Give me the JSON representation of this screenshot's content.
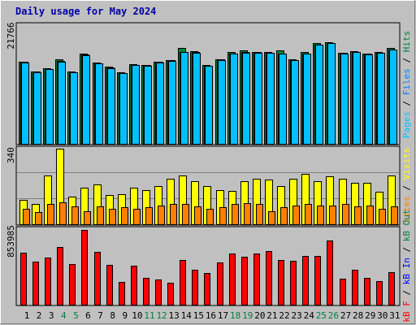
{
  "title": "Daily usage for May 2024",
  "colors": {
    "hits": "#008040",
    "files": "#0080ff",
    "pages": "#00c0ff",
    "visits": "#ffff00",
    "sites": "#ff8000",
    "kbin": "#ff0000",
    "kbout": "#0000ff",
    "weekend": "#008040",
    "weekday": "#000000",
    "title": "#0000aa"
  },
  "panels": {
    "top": {
      "max_label": "21766",
      "legend": [
        "Pages",
        " / ",
        "Files",
        " / ",
        "Hits"
      ]
    },
    "mid": {
      "max_label": "340",
      "legend": [
        "Visits",
        " / ",
        "Sites"
      ]
    },
    "bot": {
      "max_label": "853985",
      "legend": [
        "kB F",
        " / ",
        "kB In",
        " / ",
        "kB Out"
      ]
    }
  },
  "chart_data": [
    {
      "type": "bar",
      "title": "Daily usage for May 2024",
      "ylabel": "Pages / Files / Hits",
      "categories": [
        "1",
        "2",
        "3",
        "4",
        "5",
        "6",
        "7",
        "8",
        "9",
        "10",
        "11",
        "12",
        "13",
        "14",
        "15",
        "16",
        "17",
        "18",
        "19",
        "20",
        "21",
        "22",
        "23",
        "24",
        "25",
        "26",
        "27",
        "28",
        "29",
        "30",
        "31"
      ],
      "weekend_days": [
        "4",
        "5",
        "11",
        "12",
        "18",
        "19",
        "25",
        "26"
      ],
      "ylim": [
        0,
        21766
      ],
      "series": [
        {
          "name": "Hits",
          "values": [
            17800,
            15700,
            16300,
            18200,
            15600,
            19400,
            17500,
            16600,
            15400,
            17200,
            17100,
            17800,
            18100,
            20700,
            20000,
            17000,
            18300,
            19800,
            20100,
            19900,
            19800,
            20200,
            18200,
            19900,
            21800,
            21900,
            19700,
            20000,
            19500,
            19800,
            20800
          ]
        },
        {
          "name": "Files",
          "values": [
            17700,
            15600,
            16200,
            17900,
            15500,
            19300,
            17400,
            16500,
            15300,
            17100,
            17000,
            17700,
            18000,
            19900,
            19800,
            16900,
            18200,
            19500,
            19800,
            19800,
            19700,
            19500,
            18100,
            19500,
            21500,
            21800,
            19600,
            19900,
            19400,
            19700,
            20400
          ]
        },
        {
          "name": "Pages",
          "values": [
            17600,
            15500,
            16100,
            17700,
            15400,
            19200,
            17300,
            16400,
            15200,
            17000,
            16900,
            17600,
            17900,
            19800,
            19700,
            16800,
            18100,
            19400,
            19700,
            19700,
            19600,
            19400,
            18000,
            19400,
            21400,
            21700,
            19500,
            19800,
            19300,
            19600,
            20300
          ]
        }
      ]
    },
    {
      "type": "bar",
      "ylabel": "Visits / Sites",
      "categories": [
        "1",
        "2",
        "3",
        "4",
        "5",
        "6",
        "7",
        "8",
        "9",
        "10",
        "11",
        "12",
        "13",
        "14",
        "15",
        "16",
        "17",
        "18",
        "19",
        "20",
        "21",
        "22",
        "23",
        "24",
        "25",
        "26",
        "27",
        "28",
        "29",
        "30",
        "31"
      ],
      "ylim": [
        0,
        340
      ],
      "series": [
        {
          "name": "Visits",
          "values": [
            110,
            90,
            220,
            340,
            125,
            165,
            180,
            130,
            135,
            165,
            155,
            170,
            205,
            220,
            195,
            170,
            155,
            150,
            195,
            205,
            200,
            170,
            205,
            225,
            195,
            215,
            205,
            185,
            185,
            145,
            220
          ]
        },
        {
          "name": "Sites",
          "values": [
            70,
            55,
            90,
            100,
            80,
            60,
            80,
            70,
            75,
            70,
            75,
            85,
            90,
            92,
            80,
            70,
            75,
            90,
            95,
            90,
            60,
            75,
            85,
            90,
            85,
            85,
            90,
            80,
            85,
            70,
            80
          ]
        }
      ]
    },
    {
      "type": "bar",
      "ylabel": "kB F / kB In / kB Out",
      "categories": [
        "1",
        "2",
        "3",
        "4",
        "5",
        "6",
        "7",
        "8",
        "9",
        "10",
        "11",
        "12",
        "13",
        "14",
        "15",
        "16",
        "17",
        "18",
        "19",
        "20",
        "21",
        "22",
        "23",
        "24",
        "25",
        "26",
        "27",
        "28",
        "29",
        "30",
        "31"
      ],
      "ylim": [
        0,
        853985
      ],
      "series": [
        {
          "name": "kB F",
          "values": [
            600000,
            500000,
            540000,
            670000,
            470000,
            860000,
            610000,
            460000,
            260000,
            450000,
            310000,
            295000,
            250000,
            520000,
            400000,
            370000,
            490000,
            590000,
            555000,
            590000,
            615000,
            520000,
            505000,
            560000,
            565000,
            740000,
            300000,
            400000,
            310000,
            270000,
            380000
          ]
        }
      ]
    }
  ]
}
